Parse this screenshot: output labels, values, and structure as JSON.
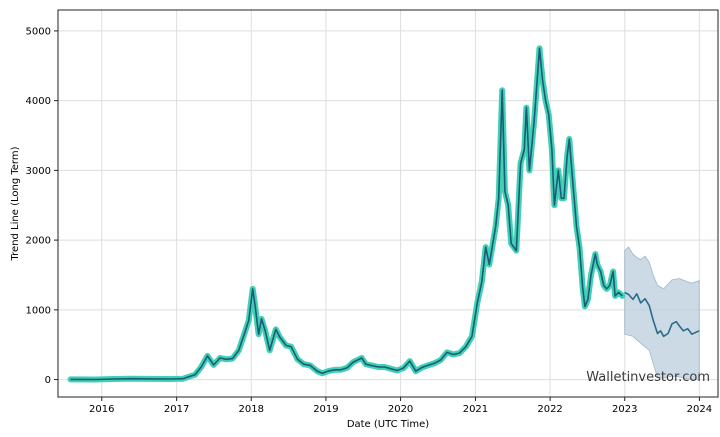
{
  "chart_data": {
    "type": "line",
    "xlabel": "Date (UTC Time)",
    "ylabel": "Trend Line (Long Term)",
    "watermark": "Walletinvestor.com",
    "xlim": [
      "2015-06-01",
      "2024-04-01"
    ],
    "ylim": [
      -250,
      5300
    ],
    "grid": true,
    "x_ticks": [
      "2016",
      "2017",
      "2018",
      "2019",
      "2020",
      "2021",
      "2022",
      "2023",
      "2024"
    ],
    "y_ticks": [
      0,
      1000,
      2000,
      3000,
      4000,
      5000
    ],
    "colors": {
      "history_glow": "#40d1b4",
      "history_line": "#1d5a78",
      "forecast_line": "#2b6a8a",
      "forecast_band": "#b9cddb",
      "grid": "#dedede"
    },
    "series": [
      {
        "role": "history",
        "points": [
          [
            "2015-08-01",
            2
          ],
          [
            "2015-12-01",
            1
          ],
          [
            "2016-03-01",
            8
          ],
          [
            "2016-06-01",
            12
          ],
          [
            "2016-09-01",
            10
          ],
          [
            "2016-12-01",
            8
          ],
          [
            "2017-02-01",
            12
          ],
          [
            "2017-03-01",
            40
          ],
          [
            "2017-04-01",
            70
          ],
          [
            "2017-05-01",
            180
          ],
          [
            "2017-06-01",
            340
          ],
          [
            "2017-07-01",
            210
          ],
          [
            "2017-08-01",
            310
          ],
          [
            "2017-09-01",
            290
          ],
          [
            "2017-10-01",
            300
          ],
          [
            "2017-11-01",
            420
          ],
          [
            "2017-12-01",
            680
          ],
          [
            "2017-12-20",
            850
          ],
          [
            "2018-01-08",
            1300
          ],
          [
            "2018-01-20",
            1050
          ],
          [
            "2018-02-06",
            650
          ],
          [
            "2018-02-20",
            870
          ],
          [
            "2018-03-10",
            700
          ],
          [
            "2018-04-01",
            420
          ],
          [
            "2018-05-01",
            720
          ],
          [
            "2018-05-20",
            610
          ],
          [
            "2018-06-20",
            490
          ],
          [
            "2018-07-15",
            470
          ],
          [
            "2018-08-15",
            290
          ],
          [
            "2018-09-15",
            220
          ],
          [
            "2018-10-15",
            205
          ],
          [
            "2018-11-20",
            120
          ],
          [
            "2018-12-15",
            90
          ],
          [
            "2019-01-15",
            125
          ],
          [
            "2019-02-15",
            140
          ],
          [
            "2019-03-15",
            140
          ],
          [
            "2019-04-15",
            170
          ],
          [
            "2019-05-15",
            250
          ],
          [
            "2019-06-25",
            310
          ],
          [
            "2019-07-15",
            220
          ],
          [
            "2019-08-15",
            200
          ],
          [
            "2019-09-15",
            180
          ],
          [
            "2019-10-15",
            180
          ],
          [
            "2019-11-15",
            155
          ],
          [
            "2019-12-15",
            130
          ],
          [
            "2020-01-15",
            165
          ],
          [
            "2020-02-15",
            265
          ],
          [
            "2020-03-15",
            120
          ],
          [
            "2020-04-15",
            175
          ],
          [
            "2020-05-15",
            205
          ],
          [
            "2020-06-15",
            235
          ],
          [
            "2020-07-15",
            280
          ],
          [
            "2020-08-15",
            390
          ],
          [
            "2020-09-15",
            360
          ],
          [
            "2020-10-15",
            380
          ],
          [
            "2020-11-15",
            470
          ],
          [
            "2020-12-15",
            620
          ],
          [
            "2021-01-10",
            1100
          ],
          [
            "2021-02-01",
            1400
          ],
          [
            "2021-02-20",
            1900
          ],
          [
            "2021-03-10",
            1650
          ],
          [
            "2021-04-10",
            2200
          ],
          [
            "2021-04-25",
            2600
          ],
          [
            "2021-05-12",
            4150
          ],
          [
            "2021-05-25",
            2700
          ],
          [
            "2021-06-10",
            2500
          ],
          [
            "2021-06-25",
            1950
          ],
          [
            "2021-07-20",
            1850
          ],
          [
            "2021-08-10",
            3100
          ],
          [
            "2021-08-28",
            3300
          ],
          [
            "2021-09-07",
            3900
          ],
          [
            "2021-09-22",
            3000
          ],
          [
            "2021-10-15",
            3700
          ],
          [
            "2021-10-30",
            4300
          ],
          [
            "2021-11-10",
            4750
          ],
          [
            "2021-11-25",
            4300
          ],
          [
            "2021-12-10",
            4000
          ],
          [
            "2021-12-25",
            3800
          ],
          [
            "2022-01-10",
            3300
          ],
          [
            "2022-01-22",
            2500
          ],
          [
            "2022-02-10",
            3000
          ],
          [
            "2022-02-25",
            2600
          ],
          [
            "2022-03-10",
            2600
          ],
          [
            "2022-03-25",
            3200
          ],
          [
            "2022-04-05",
            3450
          ],
          [
            "2022-04-20",
            2900
          ],
          [
            "2022-05-10",
            2200
          ],
          [
            "2022-05-25",
            1900
          ],
          [
            "2022-06-10",
            1300
          ],
          [
            "2022-06-20",
            1050
          ],
          [
            "2022-07-05",
            1150
          ],
          [
            "2022-07-20",
            1500
          ],
          [
            "2022-08-10",
            1800
          ],
          [
            "2022-08-20",
            1650
          ],
          [
            "2022-09-05",
            1550
          ],
          [
            "2022-09-20",
            1350
          ],
          [
            "2022-10-05",
            1300
          ],
          [
            "2022-10-20",
            1350
          ],
          [
            "2022-11-05",
            1550
          ],
          [
            "2022-11-15",
            1200
          ],
          [
            "2022-12-01",
            1250
          ],
          [
            "2022-12-20",
            1200
          ]
        ]
      },
      {
        "role": "forecast",
        "points": [
          [
            "2023-01-01",
            1250
          ],
          [
            "2023-01-20",
            1220
          ],
          [
            "2023-02-10",
            1150
          ],
          [
            "2023-03-01",
            1230
          ],
          [
            "2023-03-20",
            1100
          ],
          [
            "2023-04-10",
            1160
          ],
          [
            "2023-05-01",
            1060
          ],
          [
            "2023-05-20",
            850
          ],
          [
            "2023-06-10",
            660
          ],
          [
            "2023-06-25",
            700
          ],
          [
            "2023-07-10",
            620
          ],
          [
            "2023-08-01",
            660
          ],
          [
            "2023-08-20",
            800
          ],
          [
            "2023-09-10",
            830
          ],
          [
            "2023-09-25",
            770
          ],
          [
            "2023-10-15",
            700
          ],
          [
            "2023-11-05",
            730
          ],
          [
            "2023-11-25",
            650
          ],
          [
            "2023-12-31",
            700
          ]
        ],
        "lower": [
          [
            "2023-01-01",
            650
          ],
          [
            "2023-02-10",
            620
          ],
          [
            "2023-03-20",
            520
          ],
          [
            "2023-05-01",
            420
          ],
          [
            "2023-05-20",
            230
          ],
          [
            "2023-06-10",
            30
          ],
          [
            "2023-07-10",
            20
          ],
          [
            "2023-08-20",
            50
          ],
          [
            "2023-09-25",
            40
          ],
          [
            "2023-11-05",
            10
          ],
          [
            "2023-12-31",
            0
          ]
        ],
        "upper": [
          [
            "2023-01-01",
            1850
          ],
          [
            "2023-01-20",
            1900
          ],
          [
            "2023-02-10",
            1800
          ],
          [
            "2023-03-01",
            1750
          ],
          [
            "2023-03-20",
            1720
          ],
          [
            "2023-04-10",
            1770
          ],
          [
            "2023-05-01",
            1680
          ],
          [
            "2023-05-20",
            1500
          ],
          [
            "2023-06-10",
            1350
          ],
          [
            "2023-07-10",
            1300
          ],
          [
            "2023-08-20",
            1430
          ],
          [
            "2023-09-25",
            1450
          ],
          [
            "2023-11-05",
            1400
          ],
          [
            "2023-11-25",
            1380
          ],
          [
            "2023-12-31",
            1420
          ]
        ]
      }
    ]
  }
}
